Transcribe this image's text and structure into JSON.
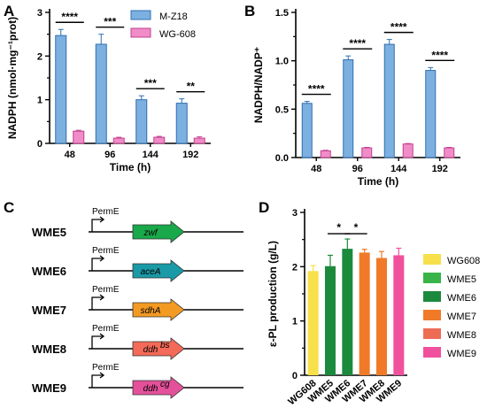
{
  "figure": {
    "panels": [
      "A",
      "B",
      "C",
      "D"
    ]
  },
  "chart_data": [
    {
      "id": "A",
      "type": "bar",
      "xlabel": "Time (h)",
      "ylabel": "NADPH (nmol·mg⁻¹prot)",
      "categories": [
        "48",
        "96",
        "144",
        "192"
      ],
      "ylim": [
        0,
        3
      ],
      "yticks": [
        "0",
        "1",
        "2",
        "3"
      ],
      "series": [
        {
          "name": "M-Z18",
          "values": [
            2.47,
            2.27,
            1.0,
            0.92
          ],
          "errors": [
            0.14,
            0.23,
            0.09,
            0.1
          ],
          "color": "#7cb0e0"
        },
        {
          "name": "WG-608",
          "values": [
            0.28,
            0.12,
            0.14,
            0.12
          ],
          "errors": [
            0.02,
            0.02,
            0.02,
            0.03
          ],
          "color": "#f08cc8"
        }
      ],
      "significance": [
        "****",
        "***",
        "***",
        "**"
      ],
      "legend": "top-right"
    },
    {
      "id": "B",
      "type": "bar",
      "xlabel": "Time (h)",
      "ylabel": "NADPH/NADP⁺",
      "categories": [
        "48",
        "96",
        "144",
        "192"
      ],
      "ylim": [
        0,
        1.5
      ],
      "yticks": [
        "0.0",
        "0.5",
        "1.0",
        "1.5"
      ],
      "series": [
        {
          "name": "M-Z18",
          "values": [
            0.56,
            1.01,
            1.17,
            0.9
          ],
          "errors": [
            0.02,
            0.04,
            0.05,
            0.03
          ],
          "color": "#7cb0e0"
        },
        {
          "name": "WG-608",
          "values": [
            0.07,
            0.1,
            0.14,
            0.1
          ],
          "errors": [
            0.005,
            0.005,
            0.005,
            0.005
          ],
          "color": "#f08cc8"
        }
      ],
      "significance": [
        "****",
        "****",
        "****",
        "****"
      ]
    },
    {
      "id": "D",
      "type": "bar",
      "xlabel": "",
      "ylabel": "ε-PL production (g/L)",
      "categories": [
        "WG608",
        "WME5",
        "WME6",
        "WME7",
        "WME8",
        "WME9"
      ],
      "ylim": [
        0,
        3
      ],
      "yticks": [
        "0",
        "1",
        "2",
        "3"
      ],
      "values": [
        1.92,
        2.01,
        2.33,
        2.26,
        2.16,
        2.21
      ],
      "errors": [
        0.1,
        0.2,
        0.18,
        0.06,
        0.12,
        0.13
      ],
      "colors": [
        "#f7e04a",
        "#1c8a3c",
        "#1c8a3c",
        "#f07a28",
        "#f07a28",
        "#f0509c"
      ],
      "legend_labels": [
        "WG608",
        "WME5",
        "WME6",
        "WME7",
        "WME8",
        "WME9"
      ],
      "legend_colors": [
        "#f7e04a",
        "#38b448",
        "#1c8a3c",
        "#f07a28",
        "#ee6c54",
        "#f0509c"
      ],
      "significance": [
        {
          "between": [
            1,
            2
          ],
          "label": "*"
        },
        {
          "between": [
            2,
            3
          ],
          "label": "*"
        }
      ],
      "legend": "right"
    }
  ],
  "constructs": [
    {
      "name": "WME5",
      "promoter": "PermE",
      "gene": "zwf",
      "color": "#19a84a"
    },
    {
      "name": "WME6",
      "promoter": "PermE",
      "gene": "aceA",
      "color": "#1a9aa6"
    },
    {
      "name": "WME7",
      "promoter": "PermE",
      "gene": "sdhA",
      "color": "#f39a22"
    },
    {
      "name": "WME8",
      "promoter": "PermE",
      "gene": "ddh",
      "gene_sup": "bs",
      "color": "#f36a58"
    },
    {
      "name": "WME9",
      "promoter": "PermE",
      "gene": "ddh",
      "gene_sup": "cg",
      "color": "#e4509a"
    }
  ]
}
